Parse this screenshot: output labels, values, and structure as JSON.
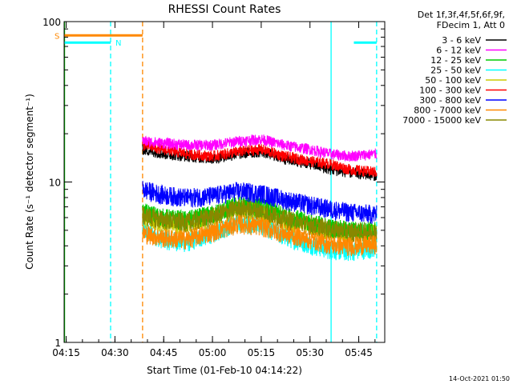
{
  "footer": {
    "date": "14-Oct-2021 01:50"
  },
  "legend": {
    "header_line1": "Det 1f,3f,4f,5f,6f,9f,",
    "header_line2": "FDecim 1, Att 0",
    "entries": [
      {
        "label": "3 - 6 keV",
        "color": "#000000"
      },
      {
        "label": "6 - 12 keV",
        "color": "#ff00ff"
      },
      {
        "label": "12 - 25 keV",
        "color": "#00cc00"
      },
      {
        "label": "25 - 50 keV",
        "color": "#00ffff"
      },
      {
        "label": "50 - 100 keV",
        "color": "#cccc00"
      },
      {
        "label": "100 - 300 keV",
        "color": "#ff0000"
      },
      {
        "label": "300 - 800 keV",
        "color": "#0000ff"
      },
      {
        "label": "800 - 7000 keV",
        "color": "#ff8800"
      },
      {
        "label": "7000 - 15000 keV",
        "color": "#888800"
      }
    ]
  },
  "chart_data": {
    "type": "line",
    "title": "RHESSI Count Rates",
    "xlabel": "Start Time (01-Feb-10 04:14:22)",
    "ylabel": "Count Rate (s⁻¹ detector segment⁻¹)",
    "y_scale": "log",
    "ylim": [
      1,
      100
    ],
    "xlim": [
      "04:14:22",
      "05:53:00"
    ],
    "x_ticks": [
      "04:15",
      "04:30",
      "04:45",
      "05:00",
      "05:15",
      "05:30",
      "05:45"
    ],
    "y_ticks": [
      "1",
      "10",
      "100"
    ],
    "data_start": "04:38:30",
    "data_end": "05:50:30",
    "series": [
      {
        "name": "3 - 6 keV",
        "color": "#000000",
        "x": [
          "04:38:30",
          "04:45",
          "04:52",
          "05:00",
          "05:08",
          "05:15",
          "05:22",
          "05:30",
          "05:36",
          "05:42",
          "05:50:30"
        ],
        "values": [
          16,
          15,
          14.5,
          14,
          15,
          15.5,
          14,
          13,
          12,
          11.5,
          11
        ]
      },
      {
        "name": "6 - 12 keV",
        "color": "#ff00ff",
        "x": [
          "04:38:30",
          "04:45",
          "04:52",
          "05:00",
          "05:08",
          "05:15",
          "05:22",
          "05:30",
          "05:36",
          "05:42",
          "05:50:30"
        ],
        "values": [
          18,
          17.5,
          17,
          17,
          18,
          18.5,
          17,
          16,
          15,
          14.5,
          15
        ]
      },
      {
        "name": "12 - 25 keV",
        "color": "#00cc00",
        "x": [
          "04:38:30",
          "04:45",
          "04:52",
          "05:00",
          "05:08",
          "05:15",
          "05:22",
          "05:30",
          "05:36",
          "05:42",
          "05:50:30"
        ],
        "values": [
          6.5,
          6,
          5.8,
          6.3,
          7.2,
          7,
          6.2,
          5.6,
          5.2,
          5,
          5
        ]
      },
      {
        "name": "25 - 50 keV",
        "color": "#00ffff",
        "x": [
          "04:38:30",
          "04:45",
          "04:52",
          "05:00",
          "05:08",
          "05:15",
          "05:22",
          "05:30",
          "05:36",
          "05:42",
          "05:50:30"
        ],
        "values": [
          5,
          4.4,
          4.2,
          4.8,
          5.6,
          5.4,
          4.6,
          4.1,
          3.8,
          3.7,
          3.9
        ]
      },
      {
        "name": "50 - 100 keV",
        "color": "#cccc00",
        "x": [
          "04:38:30",
          "04:45",
          "04:52",
          "05:00",
          "05:08",
          "05:15",
          "05:22",
          "05:30",
          "05:36",
          "05:42",
          "05:50:30"
        ],
        "values": [
          6,
          5.6,
          5.4,
          6,
          6.8,
          6.5,
          5.8,
          5.3,
          5,
          4.8,
          4.8
        ]
      },
      {
        "name": "100 - 300 keV",
        "color": "#ff0000",
        "x": [
          "04:38:30",
          "04:45",
          "04:52",
          "05:00",
          "05:08",
          "05:15",
          "05:22",
          "05:30",
          "05:36",
          "05:42",
          "05:50:30"
        ],
        "values": [
          17,
          16,
          15,
          14.5,
          15.5,
          16,
          14.5,
          13.5,
          13,
          12,
          11.5
        ]
      },
      {
        "name": "300 - 800 keV",
        "color": "#0000ff",
        "x": [
          "04:38:30",
          "04:45",
          "04:52",
          "05:00",
          "05:08",
          "05:15",
          "05:22",
          "05:30",
          "05:36",
          "05:42",
          "05:50:30"
        ],
        "values": [
          9,
          8.3,
          8,
          8.2,
          8.8,
          8.5,
          7.8,
          7.2,
          6.8,
          6.5,
          6.3
        ]
      },
      {
        "name": "800 - 7000 keV",
        "color": "#ff8800",
        "x": [
          "04:38:30",
          "04:45",
          "04:52",
          "05:00",
          "05:08",
          "05:15",
          "05:22",
          "05:30",
          "05:36",
          "05:42",
          "05:50:30"
        ],
        "values": [
          4.8,
          4.5,
          4.4,
          4.9,
          5.5,
          5.3,
          4.8,
          4.4,
          4.1,
          4,
          4.1
        ]
      },
      {
        "name": "7000 - 15000 keV",
        "color": "#888800",
        "x": [
          "04:38:30",
          "04:45",
          "04:52",
          "05:00",
          "05:08",
          "05:15",
          "05:22",
          "05:30",
          "05:36",
          "05:42",
          "05:50:30"
        ],
        "values": [
          6.2,
          5.8,
          5.6,
          6.1,
          6.9,
          6.6,
          5.9,
          5.4,
          5.1,
          4.9,
          4.9
        ]
      }
    ],
    "markers": [
      {
        "label": "S",
        "color": "#ff8800",
        "start": "04:14:22",
        "end": "04:38:30",
        "value": 82
      },
      {
        "label": "N",
        "color": "#00ffff",
        "start": "04:14:22",
        "end": "04:28:40",
        "value": 74
      },
      {
        "label": "",
        "color": "#00ffff",
        "start": "05:43:30",
        "end": "05:50:30",
        "value": 74
      }
    ],
    "vlines": [
      {
        "time": "04:14:30",
        "color": "#00cc00",
        "style": "solid"
      },
      {
        "time": "04:28:40",
        "color": "#00ffff",
        "style": "dashed"
      },
      {
        "time": "04:38:30",
        "color": "#ff8800",
        "style": "dashed"
      },
      {
        "time": "05:36:30",
        "color": "#00ffff",
        "style": "solid"
      },
      {
        "time": "05:50:30",
        "color": "#00ffff",
        "style": "dashed"
      }
    ]
  }
}
